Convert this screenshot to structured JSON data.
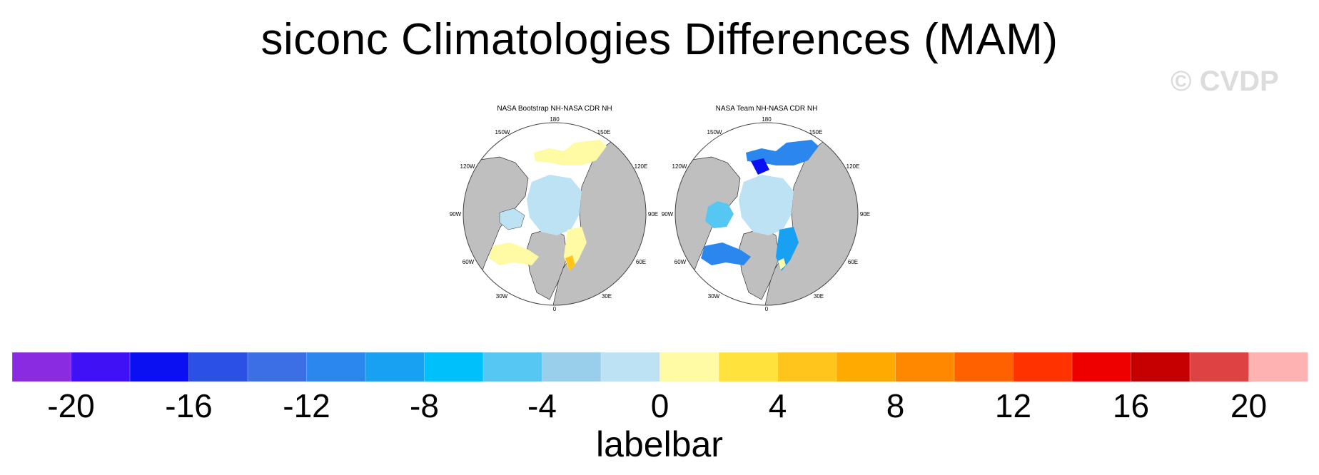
{
  "title": "siconc Climatologies Differences (MAM)",
  "watermark": "© CVDP",
  "panels": [
    {
      "title": "NASA Bootstrap NH-NASA CDR NH",
      "lon_labels": {
        "n": "180",
        "nne": "150E",
        "ene": "120E",
        "e": "90E",
        "ese": "60E",
        "sse": "30E",
        "s": "0",
        "ssw": "30W",
        "wsw": "60W",
        "w": "90W",
        "wnw": "120W",
        "nnw": "150W"
      }
    },
    {
      "title": "NASA Team NH-NASA CDR NH",
      "lon_labels": {
        "n": "180",
        "nne": "150E",
        "ene": "120E",
        "e": "90E",
        "ese": "60E",
        "sse": "30E",
        "s": "0",
        "ssw": "30W",
        "wsw": "60W",
        "w": "90W",
        "wnw": "120W",
        "nnw": "150W"
      }
    }
  ],
  "colorbar": {
    "label": "labelbar",
    "colors": [
      "#8a2be2",
      "#4111f5",
      "#0a10f2",
      "#2b50e6",
      "#3c6fe6",
      "#2b86ee",
      "#18a0f2",
      "#00c0fb",
      "#56c6f2",
      "#99cfea",
      "#bde2f3",
      "#fffaa4",
      "#ffe33c",
      "#ffc51c",
      "#ffaa00",
      "#ff8800",
      "#ff6000",
      "#ff3200",
      "#ef0000",
      "#c60000",
      "#de4242",
      "#ffb2b2"
    ],
    "tick_labels": [
      "-20",
      "-16",
      "-12",
      "-8",
      "-4",
      "0",
      "4",
      "8",
      "12",
      "16",
      "20"
    ],
    "range": [
      -22,
      22
    ],
    "interval": 2
  }
}
